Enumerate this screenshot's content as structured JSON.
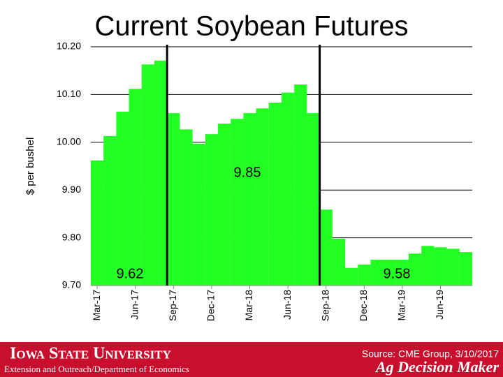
{
  "chart_data": {
    "type": "bar",
    "title": "Current Soybean Futures",
    "y_label": "$ per bushel",
    "categories": [
      "Mar-17",
      null,
      null,
      "Jun-17",
      null,
      null,
      "Sep-17",
      null,
      null,
      "Dec-17",
      null,
      null,
      "Mar-18",
      null,
      null,
      "Jun-18",
      null,
      null,
      "Sep-18",
      null,
      null,
      "Dec-18",
      null,
      null,
      "Mar-19",
      null,
      null,
      "Jun-19",
      null,
      null
    ],
    "values": [
      9.962,
      10.013,
      10.064,
      10.112,
      10.163,
      10.171,
      10.061,
      10.027,
      9.997,
      10.017,
      10.039,
      10.049,
      10.061,
      10.071,
      10.083,
      10.104,
      10.121,
      10.061,
      9.859,
      9.798,
      9.737,
      9.744,
      9.754,
      9.754,
      9.754,
      9.767,
      9.783,
      9.78,
      9.777,
      9.77
    ],
    "color": "#22ff22",
    "ylim": [
      9.7,
      10.2
    ],
    "yticks": [
      {
        "value": 9.7,
        "label": "9.70"
      },
      {
        "value": 9.8,
        "label": "9.80"
      },
      {
        "value": 9.9,
        "label": "9.90"
      },
      {
        "value": 10.0,
        "label": "10.00"
      },
      {
        "value": 10.1,
        "label": "10.10"
      },
      {
        "value": 10.2,
        "label": "10.20"
      }
    ],
    "grid": true,
    "annotations": [
      "9.62",
      "9.85",
      "9.58"
    ]
  },
  "footer": {
    "university": "Iowa State University",
    "department": "Extension and Outreach/Department of Economics",
    "source": "Source: CME Group, 3/10/2017",
    "brand": "Ag Decision Maker"
  }
}
